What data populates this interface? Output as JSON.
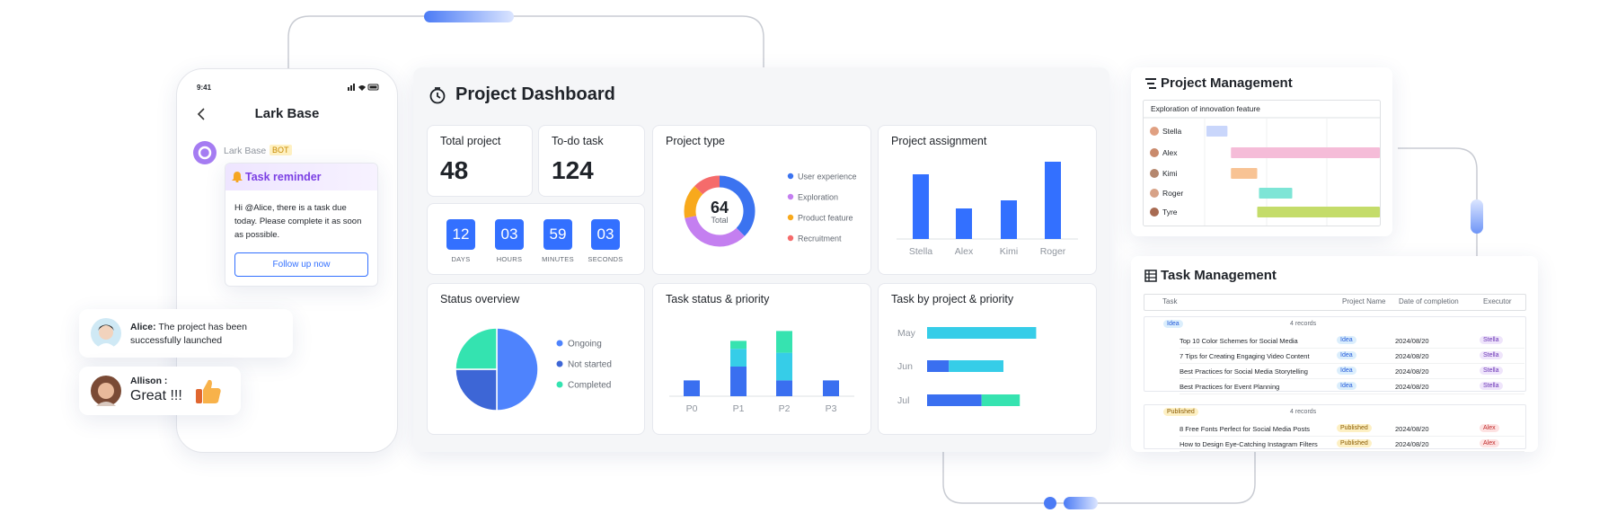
{
  "phone": {
    "time": "9:41",
    "title": "Lark Base",
    "bot_name": "Lark Base",
    "bot_tag": "BOT",
    "card_title": "Task reminder",
    "card_text": "Hi @Alice, there is a task due today. Please complete it as soon as possible.",
    "button": "Follow up now"
  },
  "chats": [
    {
      "name": "Alice:",
      "text": "The project has been successfully launched"
    },
    {
      "name": "Allison :",
      "text": "Great !!!"
    }
  ],
  "dashboard": {
    "title": "Project Dashboard",
    "stats": [
      {
        "label": "Total project",
        "value": 48
      },
      {
        "label": "To-do task",
        "value": 124
      }
    ],
    "countdown": [
      {
        "value": "12",
        "label": "DAYS"
      },
      {
        "value": "03",
        "label": "HOURS"
      },
      {
        "value": "59",
        "label": "MINUTES"
      },
      {
        "value": "03",
        "label": "SECONDS"
      }
    ],
    "project_type": {
      "title": "Project type",
      "total": 64,
      "total_label": "Total",
      "segments": [
        {
          "name": "User experience",
          "color": "#3b73f0",
          "value": 24
        },
        {
          "name": "Exploration",
          "color": "#c47ff0",
          "value": 22
        },
        {
          "name": "Product feature",
          "color": "#f8a91c",
          "value": 10
        },
        {
          "name": "Recruitment",
          "color": "#f56b6b",
          "value": 8
        }
      ]
    },
    "project_assignment": {
      "title": "Project assignment",
      "categories": [
        "Stella",
        "Alex",
        "Kimi",
        "Roger"
      ],
      "values": [
        72,
        34,
        43,
        86
      ],
      "ylim": [
        0,
        100
      ],
      "color": "#3370ff"
    },
    "status_overview": {
      "title": "Status overview",
      "segments": [
        {
          "name": "Ongoing",
          "color": "#4e83fd",
          "value": 50
        },
        {
          "name": "Not started",
          "color": "#3d66d6",
          "value": 25
        },
        {
          "name": "Completed",
          "color": "#34e3b0",
          "value": 25
        }
      ]
    },
    "task_status": {
      "title": "Task status & priority",
      "categories": [
        "P0",
        "P1",
        "P2",
        "P3"
      ],
      "ylim": [
        0,
        25
      ],
      "series": [
        {
          "color": "#3a6ff0",
          "values": [
            4,
            7.5,
            4,
            4
          ]
        },
        {
          "color": "#36cde8",
          "values": [
            0,
            4.5,
            7,
            0
          ]
        },
        {
          "color": "#36e3b0",
          "values": [
            0,
            2,
            5.5,
            0
          ]
        }
      ]
    },
    "task_by_project": {
      "title": "Task by project & priority",
      "categories": [
        "May",
        "Jun",
        "Jul"
      ],
      "xlim": [
        0,
        14
      ],
      "series": [
        {
          "color": "#3a6ff0",
          "values": [
            0,
            2,
            5
          ]
        },
        {
          "color": "#36cde8",
          "values": [
            10,
            5,
            0
          ]
        },
        {
          "color": "#36e3b0",
          "values": [
            0,
            0,
            3.5
          ]
        }
      ]
    }
  },
  "project_management": {
    "title": "Project Management",
    "task": "Exploration of innovation feature",
    "xlim": [
      0,
      10
    ],
    "rows": [
      {
        "name": "Stella",
        "start": 0.1,
        "end": 1.3,
        "color": "#c9d6fb"
      },
      {
        "name": "Alex",
        "start": 1.5,
        "end": 10,
        "color": "#f5bcd8"
      },
      {
        "name": "Kimi",
        "start": 1.5,
        "end": 3,
        "color": "#f8c394"
      },
      {
        "name": "Roger",
        "start": 3.1,
        "end": 5,
        "color": "#7ee5d6"
      },
      {
        "name": "Tyre",
        "start": 3,
        "end": 10,
        "color": "#c4dc6a"
      }
    ]
  },
  "task_management": {
    "title": "Task Management",
    "columns": [
      "Task",
      "Project Name",
      "Date of completion",
      "Executor"
    ],
    "groups": [
      {
        "name": "Idea",
        "count": "4 records",
        "rows": [
          {
            "task": "Top 10 Color Schemes for Social Media",
            "project": "Idea",
            "date": "2024/08/20",
            "executor": "Stella"
          },
          {
            "task": "7 Tips for Creating Engaging Video Content",
            "project": "Idea",
            "date": "2024/08/20",
            "executor": "Stella"
          },
          {
            "task": "Best Practices for Social Media Storytelling",
            "project": "Idea",
            "date": "2024/08/20",
            "executor": "Stella"
          },
          {
            "task": "Best Practices for Event Planning",
            "project": "Idea",
            "date": "2024/08/20",
            "executor": "Stella"
          }
        ]
      },
      {
        "name": "Published",
        "count": "4 records",
        "rows": [
          {
            "task": "8 Free Fonts Perfect for Social Media Posts",
            "project": "Published",
            "date": "2024/08/20",
            "executor": "Alex"
          },
          {
            "task": "How to Design Eye-Catching Instagram Filters",
            "project": "Published",
            "date": "2024/08/20",
            "executor": "Alex"
          }
        ]
      }
    ]
  }
}
